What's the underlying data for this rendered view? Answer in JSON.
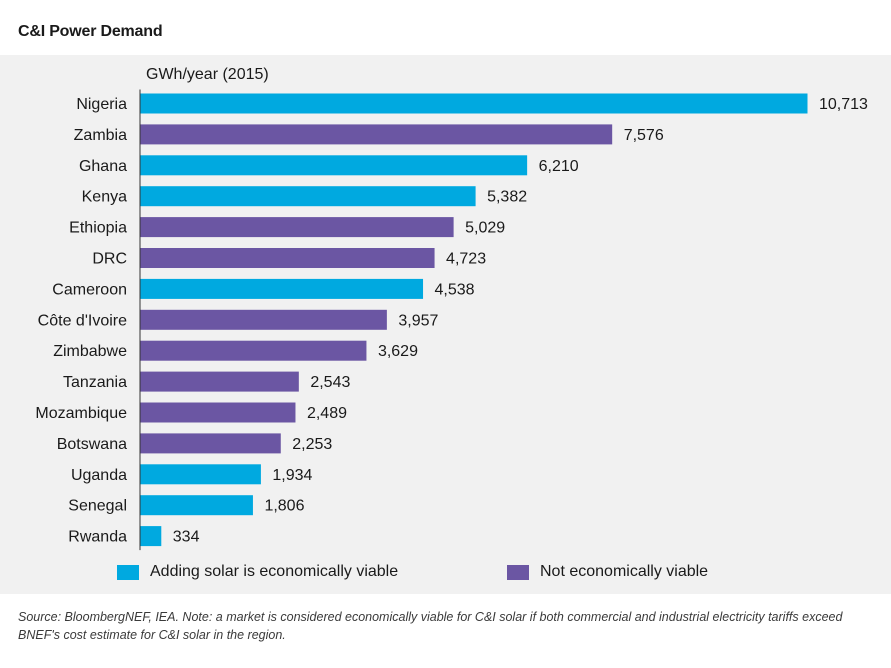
{
  "title": "C&I Power Demand",
  "chart_data": {
    "type": "bar",
    "orientation": "horizontal",
    "unit_label": "GWh/year (2015)",
    "categories": [
      "Nigeria",
      "Zambia",
      "Ghana",
      "Kenya",
      "Ethiopia",
      "DRC",
      "Cameroon",
      "Côte d'Ivoire",
      "Zimbabwe",
      "Tanzania",
      "Mozambique",
      "Botswana",
      "Uganda",
      "Senegal",
      "Rwanda"
    ],
    "values": [
      10713,
      7576,
      6210,
      5382,
      5029,
      4723,
      4538,
      3957,
      3629,
      2543,
      2489,
      2253,
      1934,
      1806,
      334
    ],
    "value_labels": [
      "10,713",
      "7,576",
      "6,210",
      "5,382",
      "5,029",
      "4,723",
      "4,538",
      "3,957",
      "3,629",
      "2,543",
      "2,489",
      "2,253",
      "1,934",
      "1,806",
      "334"
    ],
    "viable": [
      true,
      false,
      true,
      true,
      false,
      false,
      true,
      false,
      false,
      false,
      false,
      false,
      true,
      true,
      true
    ],
    "xlim": [
      0,
      10713
    ],
    "grid": false,
    "legend_position": "bottom",
    "legend": [
      {
        "label": "Adding solar is economically viable",
        "color": "#00a9e0"
      },
      {
        "label": "Not economically viable",
        "color": "#6b56a3"
      }
    ]
  },
  "colors": {
    "viable": "#00a9e0",
    "not_viable": "#6b56a3",
    "panel": "#f1f1f1"
  },
  "source_note": "Source: BloombergNEF, IEA. Note: a market is considered economically viable for C&I solar if both commercial and industrial electricity tariffs exceed BNEF's cost estimate for C&I solar in the region."
}
